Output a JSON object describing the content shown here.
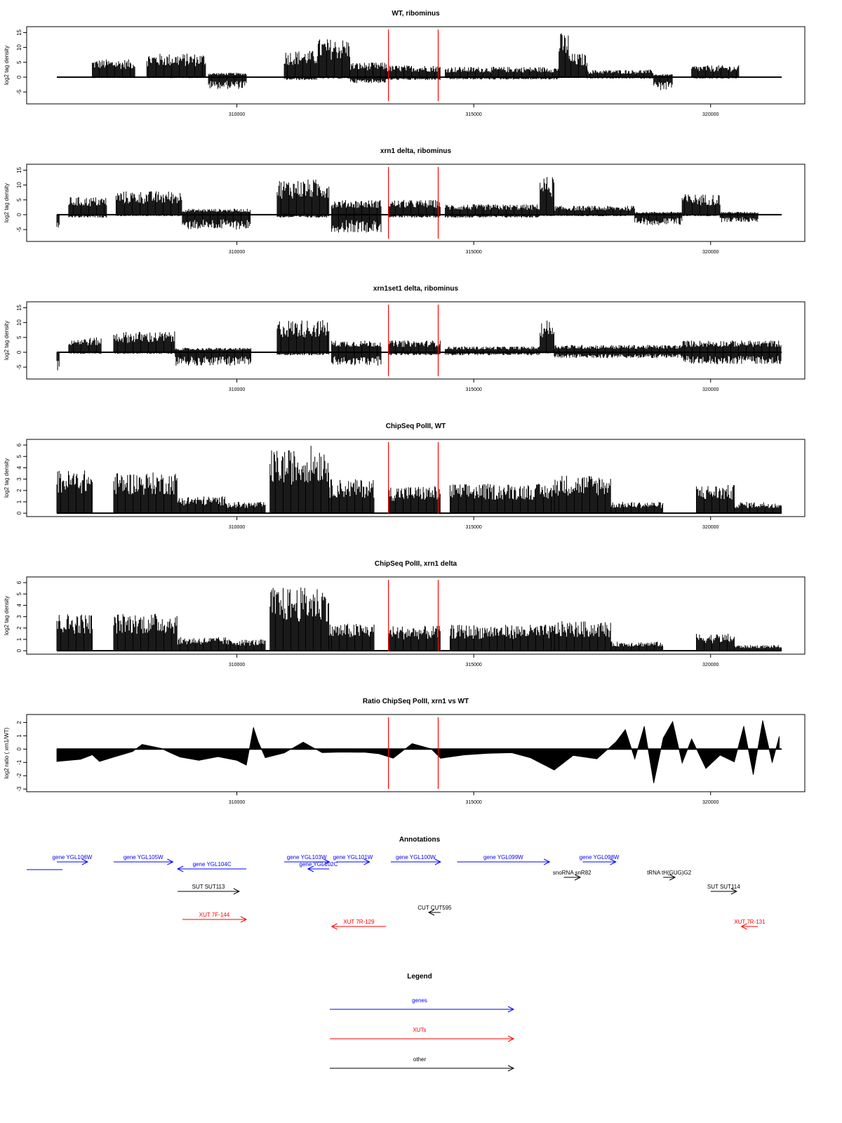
{
  "chart_data": {
    "type": "genome-tracks",
    "x_range": [
      306200,
      321500
    ],
    "x_ticks": [
      310000,
      315000,
      320000
    ],
    "region_markers": [
      313200,
      314250
    ],
    "tracks": [
      {
        "id": "wt_ribominus",
        "title": "WT, ribominus",
        "ylabel": "log2 tag density",
        "ylim": [
          -9,
          17
        ],
        "yticks": [
          -5,
          0,
          5,
          10,
          15
        ],
        "kind": "bars",
        "segments": [
          {
            "x": [
              306950,
              307850
            ],
            "top": 6,
            "bottom": -0.3
          },
          {
            "x": [
              308100,
              309350
            ],
            "top": 8,
            "bottom": -0.3
          },
          {
            "x": [
              309400,
              310200
            ],
            "top": 1.5,
            "bottom": -4
          },
          {
            "x": [
              311000,
              311700
            ],
            "top": 9,
            "bottom": -1
          },
          {
            "x": [
              311700,
              312400
            ],
            "top": 13,
            "bottom": -0.5
          },
          {
            "x": [
              312400,
              313150
            ],
            "top": 5,
            "bottom": -2
          },
          {
            "x": [
              313150,
              314300
            ],
            "top": 4,
            "bottom": -1
          },
          {
            "x": [
              314400,
              316800
            ],
            "top": 3.5,
            "bottom": -0.8
          },
          {
            "x": [
              316800,
              317000
            ],
            "top": 15,
            "bottom": -0.3
          },
          {
            "x": [
              317000,
              317400
            ],
            "top": 8,
            "bottom": -0.3
          },
          {
            "x": [
              317400,
              318800
            ],
            "top": 2.5,
            "bottom": -0.5
          },
          {
            "x": [
              318800,
              319200
            ],
            "top": 1,
            "bottom": -4.5
          },
          {
            "x": [
              319600,
              320600
            ],
            "top": 4,
            "bottom": -0.5
          }
        ]
      },
      {
        "id": "xrn1_ribominus",
        "title": "xrn1 delta, ribominus",
        "ylabel": "log2 tag density",
        "ylim": [
          -9,
          17
        ],
        "yticks": [
          -5,
          0,
          5,
          10,
          15
        ],
        "kind": "bars",
        "segments": [
          {
            "x": [
              306200,
              306250
            ],
            "top": 0,
            "bottom": -7.5
          },
          {
            "x": [
              306450,
              307250
            ],
            "top": 6,
            "bottom": -1
          },
          {
            "x": [
              307450,
              308850
            ],
            "top": 8,
            "bottom": -0.5
          },
          {
            "x": [
              308850,
              310300
            ],
            "top": 2,
            "bottom": -5
          },
          {
            "x": [
              310850,
              311950
            ],
            "top": 12,
            "bottom": -1
          },
          {
            "x": [
              312000,
              313050
            ],
            "top": 5,
            "bottom": -6
          },
          {
            "x": [
              313200,
              314300
            ],
            "top": 5,
            "bottom": -1
          },
          {
            "x": [
              314400,
              316400
            ],
            "top": 3.5,
            "bottom": -1
          },
          {
            "x": [
              316400,
              316700
            ],
            "top": 13,
            "bottom": -0.5
          },
          {
            "x": [
              316700,
              318400
            ],
            "top": 3,
            "bottom": -0.5
          },
          {
            "x": [
              318400,
              319400
            ],
            "top": 1,
            "bottom": -3.5
          },
          {
            "x": [
              319400,
              320200
            ],
            "top": 7,
            "bottom": -0.5
          },
          {
            "x": [
              320200,
              321000
            ],
            "top": 1,
            "bottom": -2.5
          }
        ]
      },
      {
        "id": "xrn1set1_ribominus",
        "title": "xrn1set1 delta, ribominus",
        "ylabel": "log2 tag density",
        "ylim": [
          -9,
          17
        ],
        "yticks": [
          -5,
          0,
          5,
          10,
          15
        ],
        "kind": "bars",
        "segments": [
          {
            "x": [
              306200,
              306250
            ],
            "top": 0,
            "bottom": -7
          },
          {
            "x": [
              306450,
              307150
            ],
            "top": 5,
            "bottom": -0.5
          },
          {
            "x": [
              307400,
              308700
            ],
            "top": 7,
            "bottom": -0.5
          },
          {
            "x": [
              308700,
              310300
            ],
            "top": 1.5,
            "bottom": -4.5
          },
          {
            "x": [
              310850,
              311950
            ],
            "top": 11,
            "bottom": -1
          },
          {
            "x": [
              312000,
              313050
            ],
            "top": 4,
            "bottom": -4.5
          },
          {
            "x": [
              313200,
              314300
            ],
            "top": 4,
            "bottom": -1
          },
          {
            "x": [
              314400,
              316400
            ],
            "top": 2,
            "bottom": -1
          },
          {
            "x": [
              316400,
              316700
            ],
            "top": 11,
            "bottom": -0.5
          },
          {
            "x": [
              316700,
              319400
            ],
            "top": 2.5,
            "bottom": -2
          },
          {
            "x": [
              319400,
              321500
            ],
            "top": 4,
            "bottom": -4
          }
        ]
      },
      {
        "id": "chip_wt",
        "title": "ChipSeq PolII, WT",
        "ylabel": "log2 tag density",
        "ylim": [
          -0.3,
          6.5
        ],
        "yticks": [
          0,
          1,
          2,
          3,
          4,
          5,
          6
        ],
        "kind": "bars",
        "segments": [
          {
            "x": [
              306200,
              306950
            ],
            "top": 3.8,
            "bottom": 0
          },
          {
            "x": [
              307400,
              308750
            ],
            "top": 3.6,
            "bottom": 0
          },
          {
            "x": [
              308750,
              309800
            ],
            "top": 1.5,
            "bottom": 0
          },
          {
            "x": [
              309800,
              310600
            ],
            "top": 1,
            "bottom": 0
          },
          {
            "x": [
              310700,
              311450
            ],
            "top": 5.6,
            "bottom": 0
          },
          {
            "x": [
              311450,
              311950
            ],
            "top": 6,
            "bottom": 0
          },
          {
            "x": [
              311950,
              312900
            ],
            "top": 3,
            "bottom": 0
          },
          {
            "x": [
              313200,
              314300
            ],
            "top": 2.4,
            "bottom": 0
          },
          {
            "x": [
              314500,
              316700
            ],
            "top": 2.6,
            "bottom": 0
          },
          {
            "x": [
              316700,
              317900
            ],
            "top": 3.4,
            "bottom": 0
          },
          {
            "x": [
              317900,
              319000
            ],
            "top": 1,
            "bottom": 0
          },
          {
            "x": [
              319700,
              320500
            ],
            "top": 2.5,
            "bottom": 0
          },
          {
            "x": [
              320500,
              321500
            ],
            "top": 1,
            "bottom": 0
          }
        ]
      },
      {
        "id": "chip_xrn1",
        "title": "ChipSeq PolII, xrn1 delta",
        "ylabel": "log2 tag density",
        "ylim": [
          -0.3,
          6.5
        ],
        "yticks": [
          0,
          1,
          2,
          3,
          4,
          5,
          6
        ],
        "kind": "bars",
        "segments": [
          {
            "x": [
              306200,
              306950
            ],
            "top": 3.3,
            "bottom": 0
          },
          {
            "x": [
              307400,
              308750
            ],
            "top": 3.3,
            "bottom": 0
          },
          {
            "x": [
              308750,
              309800
            ],
            "top": 1.2,
            "bottom": 0
          },
          {
            "x": [
              309800,
              310600
            ],
            "top": 1,
            "bottom": 0
          },
          {
            "x": [
              310700,
              311450
            ],
            "top": 5.6,
            "bottom": 0
          },
          {
            "x": [
              311450,
              311950
            ],
            "top": 5.7,
            "bottom": 0
          },
          {
            "x": [
              311950,
              312900
            ],
            "top": 2.4,
            "bottom": 0
          },
          {
            "x": [
              313200,
              314300
            ],
            "top": 2.2,
            "bottom": 0
          },
          {
            "x": [
              314500,
              316700
            ],
            "top": 2.3,
            "bottom": 0
          },
          {
            "x": [
              316700,
              317900
            ],
            "top": 2.6,
            "bottom": 0
          },
          {
            "x": [
              317900,
              319000
            ],
            "top": 0.8,
            "bottom": 0
          },
          {
            "x": [
              319700,
              320500
            ],
            "top": 1.5,
            "bottom": 0
          },
          {
            "x": [
              320500,
              321500
            ],
            "top": 0.5,
            "bottom": 0
          }
        ]
      },
      {
        "id": "ratio",
        "title": "Ratio ChipSeq PolII, xrn1 vs WT",
        "ylabel": "log2 ratio ( xrn1/WT)",
        "ylim": [
          -3.2,
          2.6
        ],
        "yticks": [
          -3,
          -2,
          -1,
          0,
          1,
          2
        ],
        "kind": "ratio",
        "profile": [
          [
            306200,
            -1.0
          ],
          [
            306700,
            -0.7
          ],
          [
            306950,
            -0.5
          ],
          [
            307100,
            -1.0
          ],
          [
            307400,
            -0.6
          ],
          [
            307800,
            -0.2
          ],
          [
            308000,
            0.3
          ],
          [
            308400,
            0.1
          ],
          [
            308600,
            -0.3
          ],
          [
            308800,
            -0.6
          ],
          [
            309200,
            -0.9
          ],
          [
            309600,
            -0.5
          ],
          [
            310000,
            -0.8
          ],
          [
            310200,
            -1.2
          ],
          [
            310350,
            1.6
          ],
          [
            310450,
            0.5
          ],
          [
            310600,
            -0.7
          ],
          [
            311000,
            -0.3
          ],
          [
            311400,
            0.5
          ],
          [
            311800,
            -0.2
          ],
          [
            312200,
            -0.3
          ],
          [
            312700,
            -0.2
          ],
          [
            313000,
            -0.3
          ],
          [
            313300,
            -0.7
          ],
          [
            313700,
            0.4
          ],
          [
            314100,
            0.1
          ],
          [
            314300,
            -0.7
          ],
          [
            314800,
            -0.5
          ],
          [
            315300,
            -0.3
          ],
          [
            315800,
            -0.2
          ],
          [
            316200,
            -0.6
          ],
          [
            316700,
            -1.5
          ],
          [
            317100,
            -0.4
          ],
          [
            317600,
            -0.7
          ],
          [
            318000,
            0.5
          ],
          [
            318200,
            1.5
          ],
          [
            318400,
            -0.8
          ],
          [
            318600,
            1.8
          ],
          [
            318800,
            -2.5
          ],
          [
            319000,
            0.8
          ],
          [
            319200,
            2.0
          ],
          [
            319400,
            -1.0
          ],
          [
            319600,
            0.8
          ],
          [
            319900,
            -1.5
          ],
          [
            320200,
            -0.5
          ],
          [
            320500,
            -1.0
          ],
          [
            320700,
            1.8
          ],
          [
            320900,
            -2.0
          ],
          [
            321100,
            2.2
          ],
          [
            321300,
            -1.0
          ],
          [
            321450,
            1.0
          ]
        ]
      }
    ],
    "annotations": {
      "title": "Annotations",
      "features": [
        {
          "label": "gene YGL106W",
          "start": 306200,
          "end": 306850,
          "strand": "+",
          "category": "genes",
          "row": 1
        },
        {
          "label": "gene YGL105W",
          "start": 307400,
          "end": 308650,
          "strand": "+",
          "category": "genes",
          "row": 1
        },
        {
          "label": "gene YGL104C",
          "start": 308750,
          "end": 310200,
          "strand": "-",
          "category": "genes",
          "row": 2
        },
        {
          "label": "gene YGL103W",
          "start": 311000,
          "end": 311950,
          "strand": "+",
          "category": "genes",
          "row": 1
        },
        {
          "label": "gene YGL102C",
          "start": 311500,
          "end": 311950,
          "strand": "-",
          "category": "genes",
          "row": 2
        },
        {
          "label": "gene YGL101W",
          "start": 312100,
          "end": 312800,
          "strand": "+",
          "category": "genes",
          "row": 1
        },
        {
          "label": "gene YGL100W",
          "start": 313250,
          "end": 314300,
          "strand": "+",
          "category": "genes",
          "row": 1
        },
        {
          "label": "gene YGL099W",
          "start": 314650,
          "end": 316600,
          "strand": "+",
          "category": "genes",
          "row": 1
        },
        {
          "label": "gene YGL098W",
          "start": 317300,
          "end": 318000,
          "strand": "+",
          "category": "genes",
          "row": 1
        },
        {
          "label": "snoRNA snR82",
          "start": 316900,
          "end": 317250,
          "strand": "+",
          "category": "other",
          "row": 3
        },
        {
          "label": "tRNA tH(GUG)G2",
          "start": 319000,
          "end": 319250,
          "strand": "+",
          "category": "other",
          "row": 3
        },
        {
          "label": "SUT SUT113",
          "start": 308750,
          "end": 310050,
          "strand": "+",
          "category": "other",
          "row": 4
        },
        {
          "label": "SUT SUT114",
          "start": 320000,
          "end": 320550,
          "strand": "+",
          "category": "other",
          "row": 4
        },
        {
          "label": "CUT CUT595",
          "start": 314050,
          "end": 314300,
          "strand": "-",
          "category": "other",
          "row": 5
        },
        {
          "label": "XUT 7F-144",
          "start": 308850,
          "end": 310200,
          "strand": "+",
          "category": "XUTs",
          "row": 6
        },
        {
          "label": "XUT 7R-129",
          "start": 312000,
          "end": 313150,
          "strand": "-",
          "category": "XUTs",
          "row": 7
        },
        {
          "label": "XUT 7R-131",
          "start": 320650,
          "end": 321000,
          "strand": "-",
          "category": "XUTs",
          "row": 7
        }
      ]
    },
    "legend": {
      "title": "Legend",
      "entries": [
        {
          "label": "genes",
          "color": "#0000ff"
        },
        {
          "label": "XUTs",
          "color": "#ff0000"
        },
        {
          "label": "other",
          "color": "#000000"
        }
      ]
    }
  },
  "colors": {
    "genes": "#0000ff",
    "XUTs": "#ff0000",
    "other": "#000000",
    "marker": "#ff0000",
    "bars": "#000000"
  }
}
